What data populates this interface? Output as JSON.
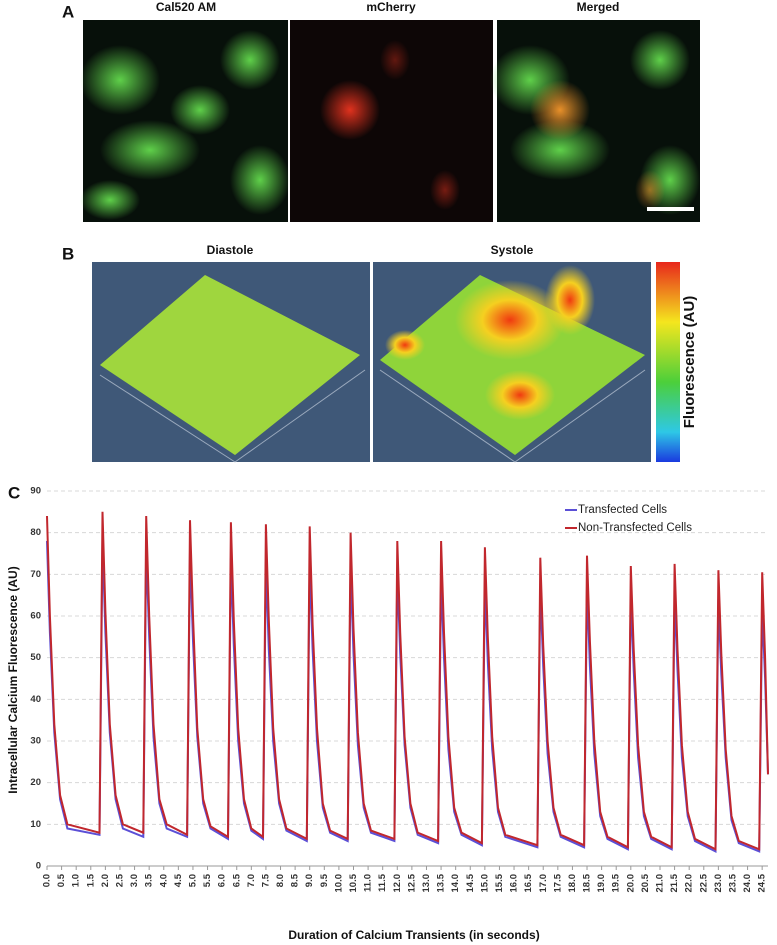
{
  "panels": {
    "a": {
      "label": "A",
      "titles": [
        "Cal520 AM",
        "mCherry",
        "Merged"
      ]
    },
    "b": {
      "label": "B",
      "titles": [
        "Diastole",
        "Systole"
      ],
      "colorbar_label": "Fluorescence (AU)"
    },
    "c": {
      "label": "C"
    }
  },
  "chart_data": {
    "type": "line",
    "x_label": "Duration of Calcium Transients (in seconds)",
    "y_label": "Intracellular Calcium Fluorescence (AU)",
    "x": [
      0,
      0.1,
      0.25,
      0.45,
      0.7,
      1.8,
      1.9,
      2.0,
      2.15,
      2.35,
      2.6,
      3.3,
      3.4,
      3.5,
      3.65,
      3.85,
      4.1,
      4.8,
      4.9,
      5.0,
      5.15,
      5.35,
      5.6,
      6.2,
      6.3,
      6.4,
      6.55,
      6.75,
      7.0,
      7.4,
      7.5,
      7.6,
      7.75,
      7.95,
      8.2,
      8.9,
      9.0,
      9.1,
      9.25,
      9.45,
      9.7,
      10.3,
      10.4,
      10.5,
      10.65,
      10.85,
      11.1,
      11.9,
      12.0,
      12.1,
      12.25,
      12.45,
      12.7,
      13.4,
      13.5,
      13.6,
      13.75,
      13.95,
      14.2,
      14.9,
      15.0,
      15.1,
      15.25,
      15.45,
      15.7,
      16.8,
      16.9,
      17.0,
      17.15,
      17.35,
      17.6,
      18.4,
      18.5,
      18.6,
      18.75,
      18.95,
      19.2,
      19.9,
      20.0,
      20.1,
      20.25,
      20.45,
      20.7,
      21.4,
      21.5,
      21.6,
      21.75,
      21.95,
      22.2,
      22.9,
      23.0,
      23.1,
      23.25,
      23.45,
      23.7,
      24.4,
      24.5,
      24.6,
      24.7
    ],
    "series": [
      {
        "name": "Transfected Cells",
        "color": "#5b4fd6",
        "values": [
          78,
          56,
          32,
          16,
          9,
          7.5,
          78,
          56,
          32,
          16,
          9,
          7,
          76.5,
          55,
          31,
          15,
          9,
          7,
          75.5,
          54,
          31,
          15,
          9,
          6.5,
          74,
          53,
          30,
          15,
          8.5,
          6.5,
          73,
          52,
          30,
          15,
          8.5,
          6,
          73,
          52,
          30,
          14,
          8,
          6,
          71.5,
          51,
          29,
          14,
          8,
          6,
          71,
          51,
          29,
          14,
          7.5,
          5.5,
          69.5,
          50,
          28,
          13,
          7.5,
          5,
          68,
          49,
          28,
          13,
          7,
          4.5,
          67,
          48,
          27,
          13,
          7,
          4.5,
          67,
          48,
          27,
          12,
          6.5,
          4,
          65,
          47,
          26,
          12,
          6.5,
          4,
          65,
          47,
          26,
          12,
          6,
          3.5,
          64,
          46,
          26,
          11,
          5.5,
          3.5,
          62,
          45,
          22
        ]
      },
      {
        "name": "Non-Transfected Cells",
        "color": "#c1272d",
        "values": [
          84,
          60,
          34,
          17,
          10,
          8,
          85,
          61,
          34,
          17,
          10,
          8,
          84,
          60,
          34,
          16,
          10,
          7.5,
          83,
          60,
          33,
          16,
          9.5,
          7,
          82.5,
          59,
          33,
          16,
          9,
          7,
          82,
          59,
          33,
          16,
          9,
          6.5,
          81.5,
          58,
          33,
          15,
          8.5,
          6.5,
          80,
          57,
          32,
          15,
          8.5,
          6.5,
          78,
          56,
          31,
          15,
          8,
          6,
          78,
          56,
          31,
          14,
          8,
          5.5,
          76.5,
          55,
          31,
          14,
          7.5,
          5,
          74,
          53,
          30,
          14,
          7.5,
          5,
          74.5,
          54,
          30,
          13,
          7,
          4.5,
          72,
          52,
          29,
          13,
          7,
          4.5,
          72.5,
          52,
          29,
          13,
          6.5,
          4,
          71,
          51,
          28,
          12,
          6,
          4,
          70.5,
          50,
          22
        ]
      }
    ],
    "xlim": [
      0,
      24.7
    ],
    "xticks": [
      {
        "value": 0,
        "label": "0.0"
      },
      {
        "value": 0.5,
        "label": "0.5"
      },
      {
        "value": 1,
        "label": "1.0"
      },
      {
        "value": 1.5,
        "label": "1.5"
      },
      {
        "value": 2,
        "label": "2.0"
      },
      {
        "value": 2.5,
        "label": "2.5"
      },
      {
        "value": 3,
        "label": "3.0"
      },
      {
        "value": 3.5,
        "label": "3.5"
      },
      {
        "value": 4,
        "label": "4.0"
      },
      {
        "value": 4.5,
        "label": "4.5"
      },
      {
        "value": 5,
        "label": "5.0"
      },
      {
        "value": 5.5,
        "label": "5.5"
      },
      {
        "value": 6,
        "label": "6.0"
      },
      {
        "value": 6.5,
        "label": "6.5"
      },
      {
        "value": 7,
        "label": "7.0"
      },
      {
        "value": 7.5,
        "label": "7.5"
      },
      {
        "value": 8,
        "label": "8.0"
      },
      {
        "value": 8.5,
        "label": "8.5"
      },
      {
        "value": 9,
        "label": "9.0"
      },
      {
        "value": 9.5,
        "label": "9.5"
      },
      {
        "value": 10,
        "label": "10.0"
      },
      {
        "value": 10.5,
        "label": "10.5"
      },
      {
        "value": 11,
        "label": "11.0"
      },
      {
        "value": 11.5,
        "label": "11.5"
      },
      {
        "value": 12,
        "label": "12.0"
      },
      {
        "value": 12.5,
        "label": "12.5"
      },
      {
        "value": 13,
        "label": "13.0"
      },
      {
        "value": 13.5,
        "label": "13.5"
      },
      {
        "value": 14,
        "label": "14.0"
      },
      {
        "value": 14.5,
        "label": "14.5"
      },
      {
        "value": 15,
        "label": "15.0"
      },
      {
        "value": 15.5,
        "label": "15.5"
      },
      {
        "value": 16,
        "label": "16.0"
      },
      {
        "value": 16.5,
        "label": "16.5"
      },
      {
        "value": 17,
        "label": "17.0"
      },
      {
        "value": 17.5,
        "label": "17.5"
      },
      {
        "value": 18,
        "label": "18.0"
      },
      {
        "value": 18.5,
        "label": "18.5"
      },
      {
        "value": 19,
        "label": "19.0"
      },
      {
        "value": 19.5,
        "label": "19.5"
      },
      {
        "value": 20,
        "label": "20.0"
      },
      {
        "value": 20.5,
        "label": "20.5"
      },
      {
        "value": 21,
        "label": "21.0"
      },
      {
        "value": 21.5,
        "label": "21.5"
      },
      {
        "value": 22,
        "label": "22.0"
      },
      {
        "value": 22.5,
        "label": "22.5"
      },
      {
        "value": 23,
        "label": "23.0"
      },
      {
        "value": 23.5,
        "label": "23.5"
      },
      {
        "value": 24,
        "label": "24.0"
      },
      {
        "value": 24.5,
        "label": "24.5"
      }
    ],
    "ylim": [
      0,
      90
    ],
    "yticks": [
      0,
      10,
      20,
      30,
      40,
      50,
      60,
      70,
      80,
      90
    ],
    "grid": true,
    "legend": "upper right"
  }
}
